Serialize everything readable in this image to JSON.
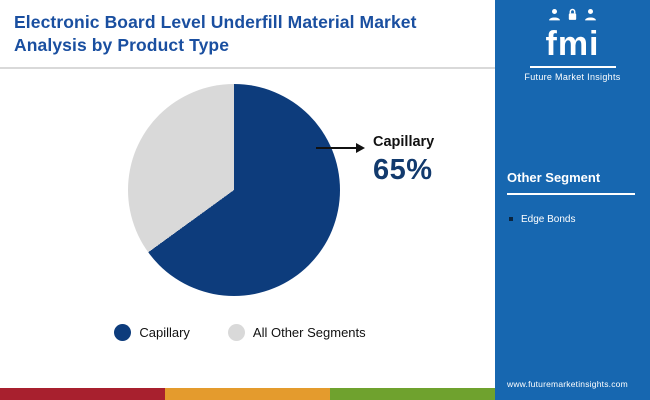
{
  "header": {
    "title": "Electronic Board Level Underfill Material Market Analysis by Product Type"
  },
  "chart_data": {
    "type": "pie",
    "title": "Electronic Board Level Underfill Material Market Analysis by Product Type",
    "labels": [
      "Capillary",
      "All Other Segments"
    ],
    "values": [
      65,
      35
    ],
    "colors": [
      "#0d3c7c",
      "#d9d9d9"
    ],
    "annotation": {
      "label": "Capillary",
      "value": "65%"
    },
    "legend_position": "bottom"
  },
  "sidebar": {
    "bg_color": "#1767b0",
    "logo_text": "fmi",
    "brand_name": "Future Market Insights",
    "panel_heading": "Other Segment",
    "items": [
      "Edge Bonds"
    ],
    "website": "www.futuremarketinsights.com"
  },
  "footer_strip": {
    "colors": [
      "#a8202e",
      "#e49b2d",
      "#6fa22e"
    ]
  }
}
